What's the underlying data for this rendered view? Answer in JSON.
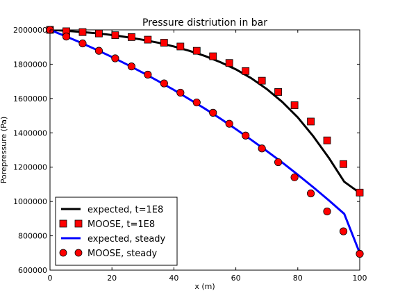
{
  "chart_data": {
    "type": "line",
    "title": "Pressure distriution in bar",
    "xlabel": "x (m)",
    "ylabel": "Porepressure (Pa)",
    "xlim": [
      0,
      100
    ],
    "ylim": [
      600000,
      2000000
    ],
    "xticks": [
      0,
      20,
      40,
      60,
      80,
      100
    ],
    "xtick_labels": [
      "0",
      "20",
      "40",
      "60",
      "80",
      "100"
    ],
    "yticks": [
      600000,
      800000,
      1000000,
      1200000,
      1400000,
      1600000,
      1800000,
      2000000
    ],
    "ytick_labels": [
      "600000",
      "800000",
      "1000000",
      "1200000",
      "1400000",
      "1600000",
      "1800000",
      "2000000"
    ],
    "grid": false,
    "legend_position": "lower-left",
    "series": [
      {
        "name": "expected, t=1E8",
        "kind": "line",
        "color": "#000000",
        "x": [
          0,
          5,
          10,
          15,
          20,
          25,
          30,
          35,
          40,
          45,
          50,
          55,
          60,
          65,
          70,
          75,
          80,
          85,
          90,
          95,
          100
        ],
        "y": [
          2000000,
          1995000,
          1988000,
          1980000,
          1970000,
          1957000,
          1942000,
          1925000,
          1903000,
          1878000,
          1848000,
          1812000,
          1770000,
          1718000,
          1655000,
          1580000,
          1490000,
          1380000,
          1255000,
          1115000,
          1050000
        ]
      },
      {
        "name": "MOOSE, t=1E8",
        "kind": "marker",
        "marker": "square",
        "color": "#ff0000",
        "x": [
          0,
          5.26,
          10.53,
          15.79,
          21.05,
          26.32,
          31.58,
          36.84,
          42.11,
          47.37,
          52.63,
          57.89,
          63.16,
          68.42,
          73.68,
          78.95,
          84.21,
          89.47,
          94.74,
          100
        ],
        "y": [
          2000000,
          1992000,
          1987000,
          1979000,
          1969000,
          1958000,
          1943000,
          1925000,
          1903000,
          1878000,
          1846000,
          1807000,
          1760000,
          1704000,
          1638000,
          1561000,
          1466000,
          1356000,
          1218000,
          1052000
        ]
      },
      {
        "name": "expected, steady",
        "kind": "line",
        "color": "#0000ff",
        "x": [
          0,
          5,
          10,
          15,
          20,
          25,
          30,
          35,
          40,
          45,
          50,
          55,
          60,
          65,
          70,
          75,
          80,
          85,
          90,
          95,
          100
        ],
        "y": [
          2000000,
          1963000,
          1925000,
          1884000,
          1842000,
          1797000,
          1750000,
          1701000,
          1650000,
          1596000,
          1541000,
          1483000,
          1422000,
          1359000,
          1294000,
          1227000,
          1156000,
          1083000,
          1007000,
          928000,
          700000
        ]
      },
      {
        "name": "MOOSE, steady",
        "kind": "marker",
        "marker": "circle",
        "color": "#ff0000",
        "x": [
          0,
          5.26,
          10.53,
          15.79,
          21.05,
          26.32,
          31.58,
          36.84,
          42.11,
          47.37,
          52.63,
          57.89,
          63.16,
          68.42,
          73.68,
          78.95,
          84.21,
          89.47,
          94.74,
          100
        ],
        "y": [
          2000000,
          1961000,
          1921000,
          1878000,
          1834000,
          1787000,
          1739000,
          1688000,
          1634000,
          1577000,
          1517000,
          1453000,
          1384000,
          1309000,
          1229000,
          1141000,
          1047000,
          942000,
          826000,
          695000
        ]
      }
    ]
  }
}
